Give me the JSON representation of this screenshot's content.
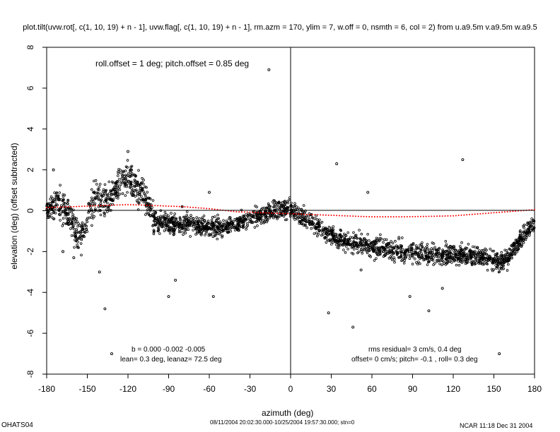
{
  "chart_data": {
    "type": "scatter",
    "title": "plot.tilt(uvw.rot[, c(1, 10, 19) + n - 1], uvw.flag[, c(1, 10, 19) + n - 1], rm.azm = 170, ylim = 7, w.off = 0, nsmth = 6, col = 2) from u.a9.5m v.a9.5m w.a9.5",
    "xlabel": "azimuth (deg)",
    "ylabel": "elevation (deg)  (offset subtracted)",
    "xlim": [
      -180,
      180
    ],
    "ylim": [
      -8,
      8
    ],
    "xticks": [
      -180,
      -150,
      -120,
      -90,
      -60,
      -30,
      0,
      30,
      60,
      90,
      120,
      150,
      180
    ],
    "yticks": [
      -8,
      -6,
      -4,
      -2,
      0,
      2,
      4,
      6,
      8
    ],
    "annotations": {
      "offsets": "roll.offset = 1 deg; pitch.offset = 0.85 deg",
      "b_coeffs": "b =  0.000 -0.002 -0.005",
      "lean": "lean= 0.3 deg, leanaz= 72.5 deg",
      "rms": "rms residual= 3 cm/s, 0.4 deg",
      "fit": "offset= 0 cm/s; pitch= -0.1 , roll=  0.3 deg"
    },
    "footer": {
      "left": "OHATS04",
      "center": "08/11/2004 20:02:30.000-10/25/2004 19:57:30.000; stn=0",
      "right": "NCAR 11:18 Dec 31 2004"
    },
    "series": [
      {
        "name": "observations",
        "kind": "points",
        "color": "#000000",
        "trend": [
          [
            -180,
            0.1
          ],
          [
            -172,
            0.3
          ],
          [
            -165,
            0.0
          ],
          [
            -160,
            -0.8
          ],
          [
            -155,
            -1.4
          ],
          [
            -150,
            -0.5
          ],
          [
            -145,
            0.6
          ],
          [
            -140,
            0.6
          ],
          [
            -135,
            0.4
          ],
          [
            -130,
            0.9
          ],
          [
            -125,
            1.4
          ],
          [
            -120,
            1.5
          ],
          [
            -115,
            1.2
          ],
          [
            -110,
            0.9
          ],
          [
            -105,
            0.2
          ],
          [
            -100,
            -0.5
          ],
          [
            -90,
            -0.6
          ],
          [
            -80,
            -0.7
          ],
          [
            -70,
            -0.7
          ],
          [
            -60,
            -0.8
          ],
          [
            -50,
            -0.8
          ],
          [
            -40,
            -0.6
          ],
          [
            -30,
            -0.4
          ],
          [
            -20,
            -0.2
          ],
          [
            -10,
            0.0
          ],
          [
            -5,
            0.1
          ],
          [
            0,
            0.0
          ],
          [
            10,
            -0.3
          ],
          [
            20,
            -0.8
          ],
          [
            30,
            -1.2
          ],
          [
            40,
            -1.5
          ],
          [
            50,
            -1.6
          ],
          [
            60,
            -1.8
          ],
          [
            70,
            -1.9
          ],
          [
            80,
            -2.0
          ],
          [
            90,
            -2.0
          ],
          [
            100,
            -2.1
          ],
          [
            110,
            -2.2
          ],
          [
            120,
            -2.1
          ],
          [
            130,
            -2.2
          ],
          [
            140,
            -2.2
          ],
          [
            150,
            -2.4
          ],
          [
            155,
            -2.5
          ],
          [
            160,
            -2.3
          ],
          [
            165,
            -1.8
          ],
          [
            170,
            -1.4
          ],
          [
            175,
            -1.0
          ],
          [
            180,
            -0.6
          ]
        ],
        "outliers": [
          [
            -16,
            6.9
          ],
          [
            -132,
            -7.0
          ],
          [
            -137,
            -4.8
          ],
          [
            -141,
            -3.0
          ],
          [
            -90,
            -4.2
          ],
          [
            -85,
            -3.4
          ],
          [
            -57,
            -4.2
          ],
          [
            28,
            -5.0
          ],
          [
            46,
            -5.7
          ],
          [
            52,
            -2.9
          ],
          [
            34,
            2.3
          ],
          [
            57,
            0.9
          ],
          [
            127,
            2.5
          ],
          [
            154,
            -7.0
          ],
          [
            102,
            -4.9
          ],
          [
            88,
            -4.2
          ],
          [
            112,
            -3.8
          ],
          [
            -168,
            -2.0
          ],
          [
            -160,
            -2.3
          ],
          [
            -175,
            2.0
          ],
          [
            -120,
            2.9
          ],
          [
            -60,
            0.9
          ],
          [
            -80,
            0.2
          ]
        ]
      },
      {
        "name": "fit",
        "kind": "dotted-curve",
        "color": "#ff0000",
        "points": [
          [
            -180,
            0.15
          ],
          [
            -160,
            0.2
          ],
          [
            -140,
            0.25
          ],
          [
            -120,
            0.3
          ],
          [
            -100,
            0.25
          ],
          [
            -80,
            0.2
          ],
          [
            -60,
            0.1
          ],
          [
            -40,
            -0.05
          ],
          [
            -20,
            -0.1
          ],
          [
            0,
            -0.15
          ],
          [
            20,
            -0.2
          ],
          [
            40,
            -0.25
          ],
          [
            60,
            -0.3
          ],
          [
            80,
            -0.3
          ],
          [
            100,
            -0.28
          ],
          [
            120,
            -0.25
          ],
          [
            140,
            -0.15
          ],
          [
            160,
            -0.05
          ],
          [
            180,
            0.05
          ]
        ]
      }
    ]
  }
}
